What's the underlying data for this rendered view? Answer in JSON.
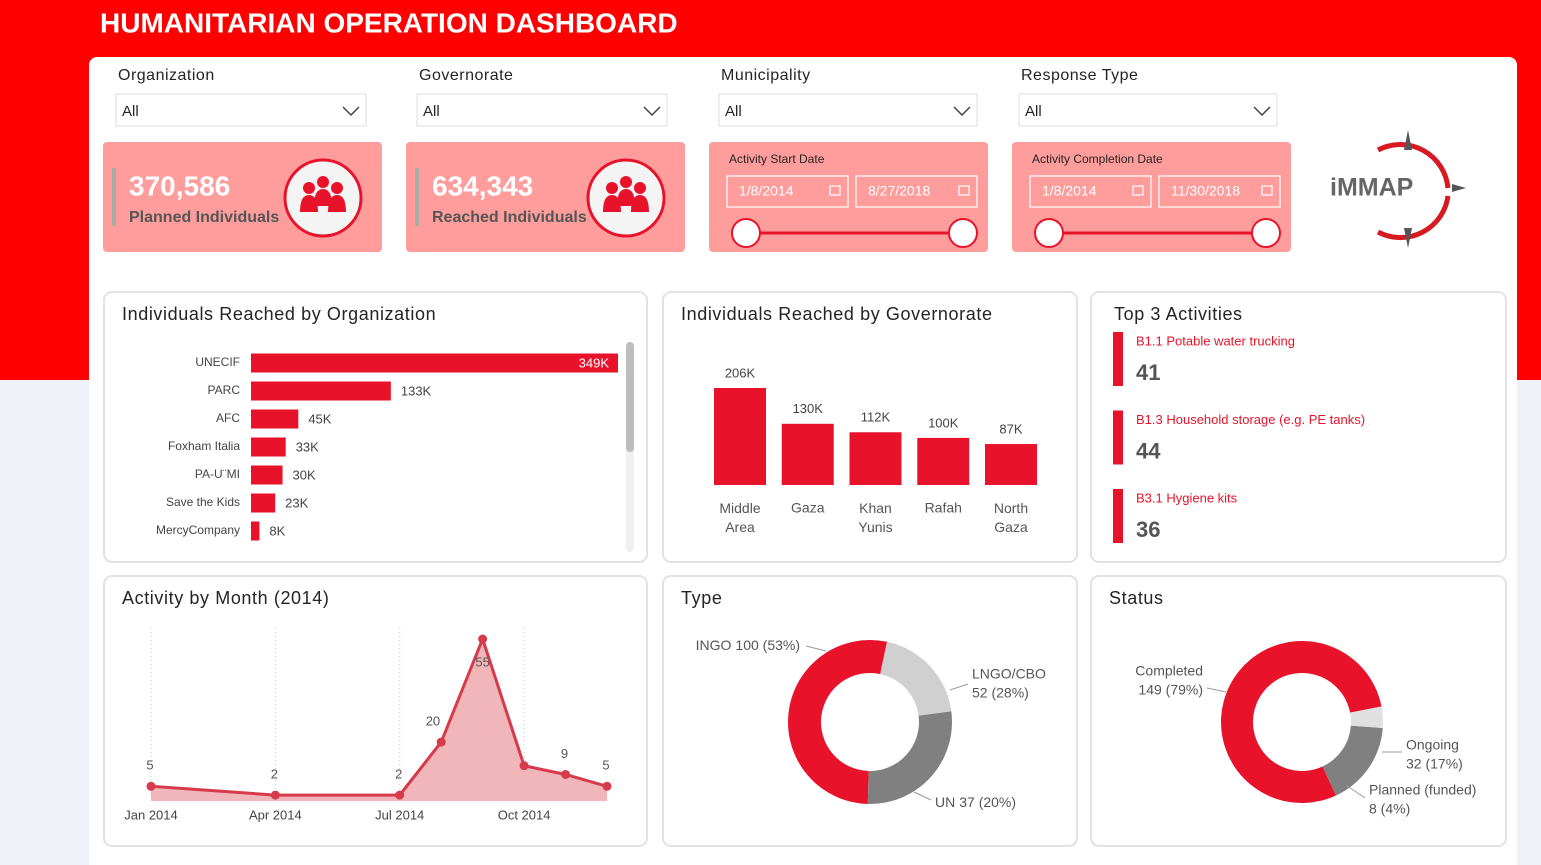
{
  "header": {
    "title": "HUMANITARIAN OPERATION DASHBOARD"
  },
  "filters": [
    {
      "label": "Organization",
      "value": "All"
    },
    {
      "label": "Governorate",
      "value": "All"
    },
    {
      "label": "Municipality",
      "value": "All"
    },
    {
      "label": "Response Type",
      "value": "All"
    }
  ],
  "kpis": [
    {
      "value": "370,586",
      "label": "Planned Individuals"
    },
    {
      "value": "634,343",
      "label": "Reached Individuals"
    }
  ],
  "date_filters": [
    {
      "label": "Activity Start Date",
      "start": "1/8/2014",
      "end": "8/27/2018"
    },
    {
      "label": "Activity Completion Date",
      "start": "1/8/2014",
      "end": "11/30/2018"
    }
  ],
  "logo": "iMMAP",
  "top_activities": {
    "title": "Top 3 Activities",
    "items": [
      {
        "name": "B1.1 Potable water trucking",
        "value": 41
      },
      {
        "name": "B1.3 Household storage (e.g. PE tanks)",
        "value": 44
      },
      {
        "name": "B3.1 Hygiene kits",
        "value": 36
      }
    ]
  },
  "chart_data": [
    {
      "type": "bar",
      "orientation": "horizontal",
      "title": "Individuals Reached by Organization",
      "categories": [
        "UNECIF",
        "PARC",
        "AFC",
        "Foxham Italia",
        "PA-U¨MI",
        "Save the Kids",
        "MercyCompany"
      ],
      "values": [
        349000,
        133000,
        45000,
        33000,
        30000,
        23000,
        8000
      ],
      "value_labels": [
        "349K",
        "133K",
        "45K",
        "33K",
        "30K",
        "23K",
        "8K"
      ],
      "color": "#e8132a"
    },
    {
      "type": "bar",
      "orientation": "vertical",
      "title": "Individuals Reached by Governorate",
      "categories": [
        "Middle Area",
        "Gaza",
        "Khan Yunis",
        "Rafah",
        "North Gaza"
      ],
      "values": [
        206000,
        130000,
        112000,
        100000,
        87000
      ],
      "value_labels": [
        "206K",
        "130K",
        "112K",
        "100K",
        "87K"
      ],
      "color": "#e8132a"
    },
    {
      "type": "area",
      "title": "Activity by Month (2014)",
      "x": [
        "2014-01",
        "2014-04",
        "2014-07",
        "2014-08",
        "2014-09",
        "2014-10",
        "2014-11",
        "2014-12"
      ],
      "values": [
        5,
        2,
        2,
        20,
        55,
        12,
        9,
        5
      ],
      "value_labels": [
        "5",
        "2",
        "2",
        "20",
        "55",
        null,
        "9",
        "5"
      ],
      "xlim": [
        "2014-01",
        "2014-12"
      ],
      "xticks": [
        {
          "value": "2014-01",
          "label": "Jan 2014"
        },
        {
          "value": "2014-04",
          "label": "Apr 2014"
        },
        {
          "value": "2014-07",
          "label": "Jul 2014"
        },
        {
          "value": "2014-10",
          "label": "Oct 2014"
        }
      ],
      "grid": true,
      "color": "#d63a4b",
      "fill": "#f0b6ba"
    },
    {
      "type": "pie",
      "donut": true,
      "title": "Type",
      "categories": [
        "INGO",
        "LNGO/CBO",
        "UN"
      ],
      "values": [
        100,
        52,
        37
      ],
      "value_labels": [
        "100 (53%)",
        "52 (28%)",
        "37 (20%)"
      ],
      "colors": [
        "#e8132a",
        "#808080",
        "#d0d0d0"
      ]
    },
    {
      "type": "pie",
      "donut": true,
      "title": "Status",
      "categories": [
        "Completed",
        "Ongoing",
        "Planned (funded)"
      ],
      "values": [
        149,
        32,
        8
      ],
      "value_labels": [
        "149 (79%)",
        "32 (17%)",
        "8 (4%)"
      ],
      "colors": [
        "#e8132a",
        "#808080",
        "#e0e0e0"
      ]
    }
  ]
}
